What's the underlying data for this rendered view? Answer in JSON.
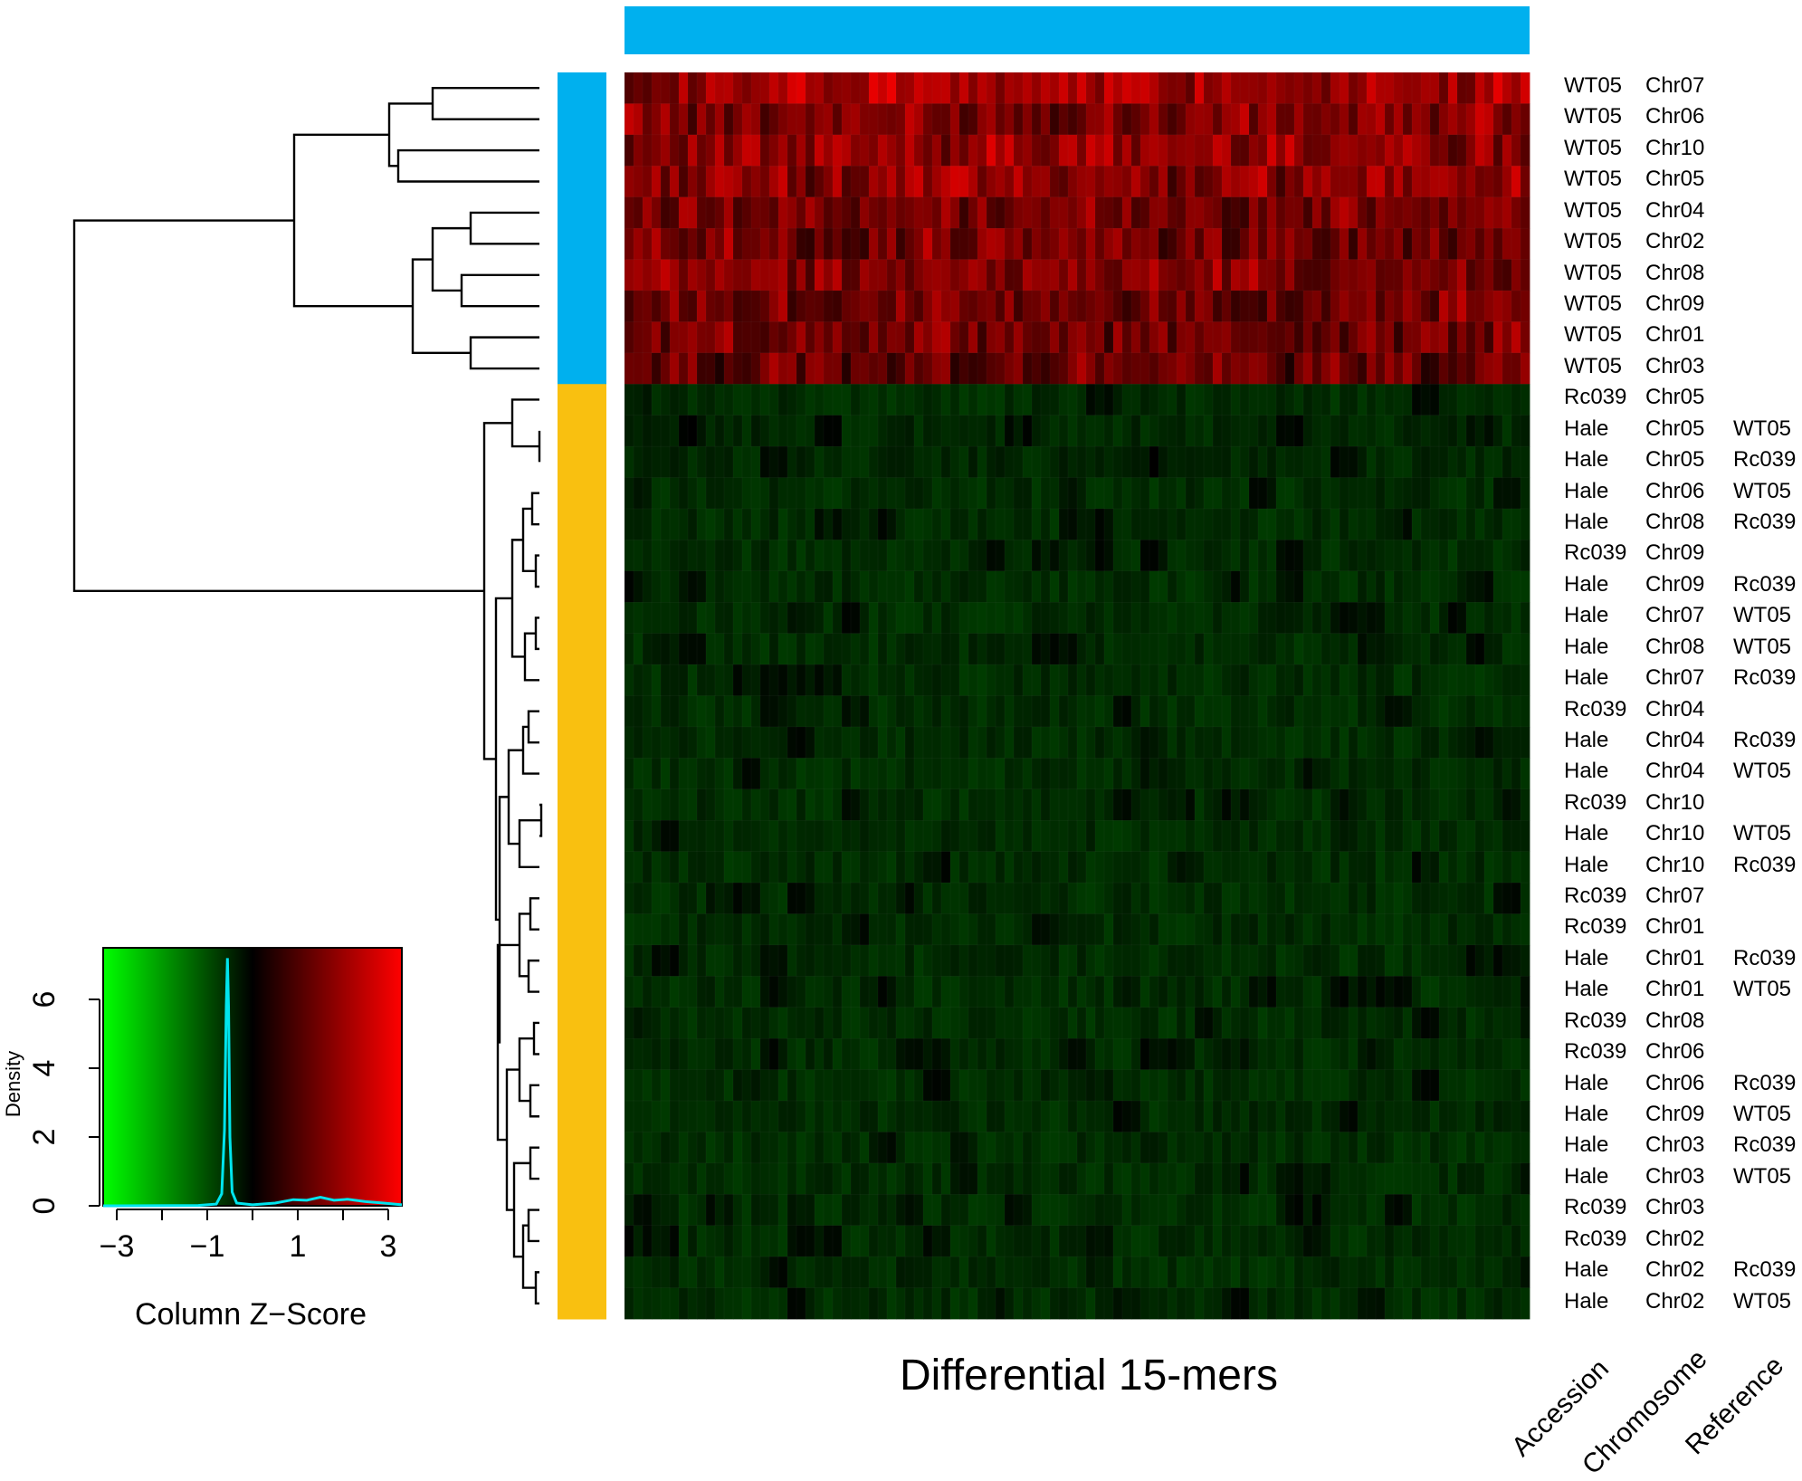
{
  "chart_data": {
    "type": "heatmap",
    "xlabel": "Differential 15-mers",
    "row_annotation_headers": [
      "Accession",
      "Chromosome",
      "Reference"
    ],
    "colors": {
      "wt05_group": "#00b0ee",
      "hale_rc039_group": "#f9c010",
      "low": "#00ff00",
      "mid": "#000000",
      "high": "#ff0000",
      "density_line": "#00e5ee"
    },
    "n_columns": 100,
    "rows": [
      {
        "accession": "WT05",
        "chromosome": "Chr07",
        "reference": "",
        "group": "WT05",
        "zscore": 1.9
      },
      {
        "accession": "WT05",
        "chromosome": "Chr06",
        "reference": "",
        "group": "WT05",
        "zscore": 1.5
      },
      {
        "accession": "WT05",
        "chromosome": "Chr10",
        "reference": "",
        "group": "WT05",
        "zscore": 1.7
      },
      {
        "accession": "WT05",
        "chromosome": "Chr05",
        "reference": "",
        "group": "WT05",
        "zscore": 1.6
      },
      {
        "accession": "WT05",
        "chromosome": "Chr04",
        "reference": "",
        "group": "WT05",
        "zscore": 1.4
      },
      {
        "accession": "WT05",
        "chromosome": "Chr02",
        "reference": "",
        "group": "WT05",
        "zscore": 1.4
      },
      {
        "accession": "WT05",
        "chromosome": "Chr08",
        "reference": "",
        "group": "WT05",
        "zscore": 1.5
      },
      {
        "accession": "WT05",
        "chromosome": "Chr09",
        "reference": "",
        "group": "WT05",
        "zscore": 1.4
      },
      {
        "accession": "WT05",
        "chromosome": "Chr01",
        "reference": "",
        "group": "WT05",
        "zscore": 1.3
      },
      {
        "accession": "WT05",
        "chromosome": "Chr03",
        "reference": "",
        "group": "WT05",
        "zscore": 1.2
      },
      {
        "accession": "Rc039",
        "chromosome": "Chr05",
        "reference": "",
        "group": "Hale",
        "zscore": -0.5
      },
      {
        "accession": "Hale",
        "chromosome": "Chr05",
        "reference": "WT05",
        "group": "Hale",
        "zscore": -0.45
      },
      {
        "accession": "Hale",
        "chromosome": "Chr05",
        "reference": "Rc039",
        "group": "Hale",
        "zscore": -0.45
      },
      {
        "accession": "Hale",
        "chromosome": "Chr06",
        "reference": "WT05",
        "group": "Hale",
        "zscore": -0.5
      },
      {
        "accession": "Hale",
        "chromosome": "Chr08",
        "reference": "Rc039",
        "group": "Hale",
        "zscore": -0.5
      },
      {
        "accession": "Rc039",
        "chromosome": "Chr09",
        "reference": "",
        "group": "Hale",
        "zscore": -0.5
      },
      {
        "accession": "Hale",
        "chromosome": "Chr09",
        "reference": "Rc039",
        "group": "Hale",
        "zscore": -0.5
      },
      {
        "accession": "Hale",
        "chromosome": "Chr07",
        "reference": "WT05",
        "group": "Hale",
        "zscore": -0.5
      },
      {
        "accession": "Hale",
        "chromosome": "Chr08",
        "reference": "WT05",
        "group": "Hale",
        "zscore": -0.5
      },
      {
        "accession": "Hale",
        "chromosome": "Chr07",
        "reference": "Rc039",
        "group": "Hale",
        "zscore": -0.5
      },
      {
        "accession": "Rc039",
        "chromosome": "Chr04",
        "reference": "",
        "group": "Hale",
        "zscore": -0.5
      },
      {
        "accession": "Hale",
        "chromosome": "Chr04",
        "reference": "Rc039",
        "group": "Hale",
        "zscore": -0.5
      },
      {
        "accession": "Hale",
        "chromosome": "Chr04",
        "reference": "WT05",
        "group": "Hale",
        "zscore": -0.5
      },
      {
        "accession": "Rc039",
        "chromosome": "Chr10",
        "reference": "",
        "group": "Hale",
        "zscore": -0.5
      },
      {
        "accession": "Hale",
        "chromosome": "Chr10",
        "reference": "WT05",
        "group": "Hale",
        "zscore": -0.5
      },
      {
        "accession": "Hale",
        "chromosome": "Chr10",
        "reference": "Rc039",
        "group": "Hale",
        "zscore": -0.5
      },
      {
        "accession": "Rc039",
        "chromosome": "Chr07",
        "reference": "",
        "group": "Hale",
        "zscore": -0.5
      },
      {
        "accession": "Rc039",
        "chromosome": "Chr01",
        "reference": "",
        "group": "Hale",
        "zscore": -0.5
      },
      {
        "accession": "Hale",
        "chromosome": "Chr01",
        "reference": "Rc039",
        "group": "Hale",
        "zscore": -0.5
      },
      {
        "accession": "Hale",
        "chromosome": "Chr01",
        "reference": "WT05",
        "group": "Hale",
        "zscore": -0.5
      },
      {
        "accession": "Rc039",
        "chromosome": "Chr08",
        "reference": "",
        "group": "Hale",
        "zscore": -0.5
      },
      {
        "accession": "Rc039",
        "chromosome": "Chr06",
        "reference": "",
        "group": "Hale",
        "zscore": -0.5
      },
      {
        "accession": "Hale",
        "chromosome": "Chr06",
        "reference": "Rc039",
        "group": "Hale",
        "zscore": -0.5
      },
      {
        "accession": "Hale",
        "chromosome": "Chr09",
        "reference": "WT05",
        "group": "Hale",
        "zscore": -0.5
      },
      {
        "accession": "Hale",
        "chromosome": "Chr03",
        "reference": "Rc039",
        "group": "Hale",
        "zscore": -0.5
      },
      {
        "accession": "Hale",
        "chromosome": "Chr03",
        "reference": "WT05",
        "group": "Hale",
        "zscore": -0.5
      },
      {
        "accession": "Rc039",
        "chromosome": "Chr03",
        "reference": "",
        "group": "Hale",
        "zscore": -0.5
      },
      {
        "accession": "Rc039",
        "chromosome": "Chr02",
        "reference": "",
        "group": "Hale",
        "zscore": -0.5
      },
      {
        "accession": "Hale",
        "chromosome": "Chr02",
        "reference": "Rc039",
        "group": "Hale",
        "zscore": -0.5
      },
      {
        "accession": "Hale",
        "chromosome": "Chr02",
        "reference": "WT05",
        "group": "Hale",
        "zscore": -0.5
      }
    ],
    "color_key": {
      "xlabel": "Column Z−Score",
      "ylabel": "Density",
      "xlim": [
        -3.3,
        3.3
      ],
      "ylim": [
        0,
        7.5
      ],
      "xticks": [
        -3,
        -1,
        1,
        3
      ],
      "xtick_labels": [
        "−3",
        "−1",
        "1",
        "3"
      ],
      "yticks": [
        0,
        2,
        4,
        6
      ],
      "yticks_labels": [
        "0",
        "2",
        "4",
        "6"
      ],
      "density_curve": [
        [
          -3.3,
          0
        ],
        [
          -1.2,
          0.01
        ],
        [
          -0.8,
          0.05
        ],
        [
          -0.68,
          0.35
        ],
        [
          -0.62,
          2.2
        ],
        [
          -0.58,
          5.8
        ],
        [
          -0.555,
          7.2
        ],
        [
          -0.53,
          5.8
        ],
        [
          -0.5,
          2.0
        ],
        [
          -0.45,
          0.4
        ],
        [
          -0.35,
          0.08
        ],
        [
          0.0,
          0.03
        ],
        [
          0.5,
          0.08
        ],
        [
          0.9,
          0.18
        ],
        [
          1.2,
          0.16
        ],
        [
          1.5,
          0.25
        ],
        [
          1.8,
          0.16
        ],
        [
          2.1,
          0.19
        ],
        [
          2.5,
          0.12
        ],
        [
          2.9,
          0.08
        ],
        [
          3.3,
          0.03
        ]
      ]
    }
  }
}
